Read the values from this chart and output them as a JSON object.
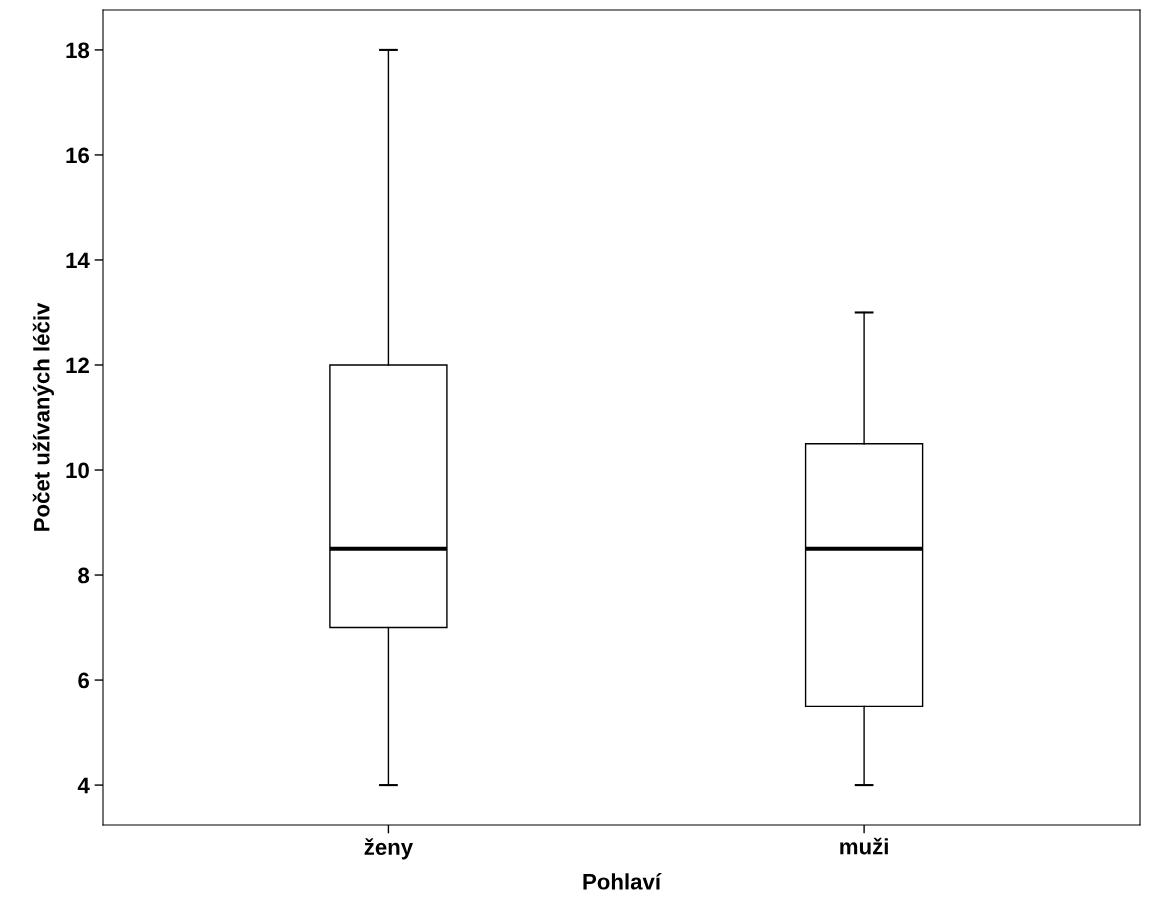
{
  "chart_data": {
    "type": "box",
    "xlabel": "Pohlaví",
    "ylabel": "Počet užívaných léčiv",
    "categories": [
      "ženy",
      "muži"
    ],
    "boxes": [
      {
        "low": 4,
        "q1": 7,
        "median": 8.5,
        "q3": 12,
        "high": 18
      },
      {
        "low": 4,
        "q1": 5.5,
        "median": 8.5,
        "q3": 10.5,
        "high": 13
      }
    ],
    "color": "#ffffff",
    "ylim": [
      3.24,
      18.76
    ],
    "yticks": [
      4,
      6,
      8,
      10,
      12,
      14,
      16,
      18
    ],
    "grid": false
  }
}
